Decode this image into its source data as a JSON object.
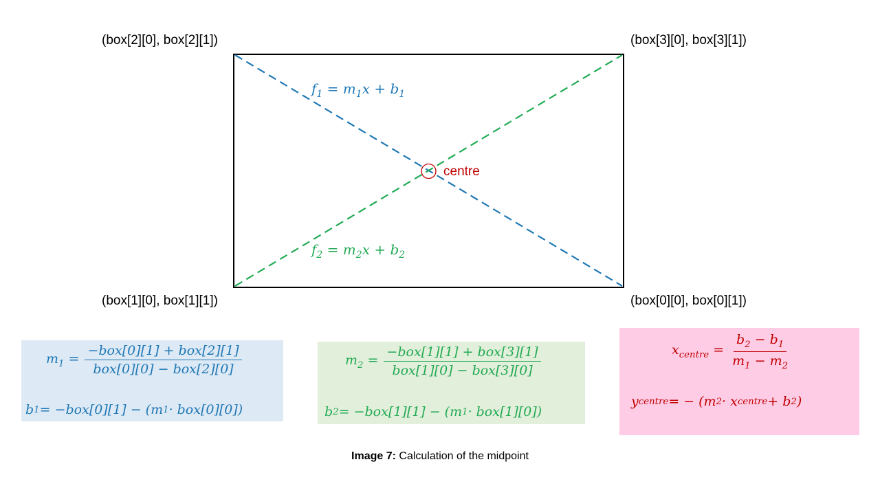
{
  "corners": {
    "top_left": "(box[2][0], box[2][1])",
    "top_right": "(box[3][0], box[3][1])",
    "bottom_left": "(box[1][0], box[1][1])",
    "bottom_right": "(box[0][0], box[0][1])"
  },
  "lines": {
    "f1": {
      "f": "f",
      "sub": "1",
      "eq": " = m",
      "msub": "1",
      "x": "x + b",
      "bsub": "1",
      "color": "#1f78b4"
    },
    "f2": {
      "f": "f",
      "sub": "2",
      "eq": " = m",
      "msub": "2",
      "x": "x + b",
      "bsub": "2",
      "color": "#22aa55"
    }
  },
  "centre_label": "centre",
  "centre_color": "#c00000",
  "blue_box": {
    "bg": "#dde9f5",
    "color": "#1f78b4",
    "m_lhs": "m",
    "m_sub": "1",
    "m_num": "−box[0][1] + box[2][1]",
    "m_den": "box[0][0] − box[2][0]",
    "b_lhs": "b",
    "b_sub": "1",
    "b_rhs_a": " = −box[0][1] − (m",
    "b_rhs_sub": "1",
    "b_rhs_b": " · box[0][0])"
  },
  "green_box": {
    "bg": "#e2efda",
    "color": "#22aa55",
    "m_lhs": "m",
    "m_sub": "2",
    "m_num": "−box[1][1] + box[3][1]",
    "m_den": "box[1][0] − box[3][0]",
    "b_lhs": "b",
    "b_sub": "2",
    "b_rhs_a": " = −box[1][1] − (m",
    "b_rhs_sub": "1",
    "b_rhs_b": " · box[1][0])"
  },
  "pink_box": {
    "bg": "#ffcce6",
    "color": "#c00000",
    "x_lhs": "x",
    "x_sub": "centre",
    "x_num_a": "b",
    "x_num_sub_a": "2",
    "x_num_b": " − b",
    "x_num_sub_b": "1",
    "x_den_a": "m",
    "x_den_sub_a": "1",
    "x_den_b": " − m",
    "x_den_sub_b": "2",
    "y_lhs": "y",
    "y_sub": "centre",
    "y_rhs_a": " = − (m",
    "y_rhs_sub_a": "2",
    "y_rhs_b": " · x",
    "y_rhs_sub_b": "centre",
    "y_rhs_c": " + b",
    "y_rhs_sub_c": "2",
    "y_rhs_d": ")"
  },
  "caption": {
    "label": "Image 7:",
    "text": " Calculation of the midpoint"
  }
}
